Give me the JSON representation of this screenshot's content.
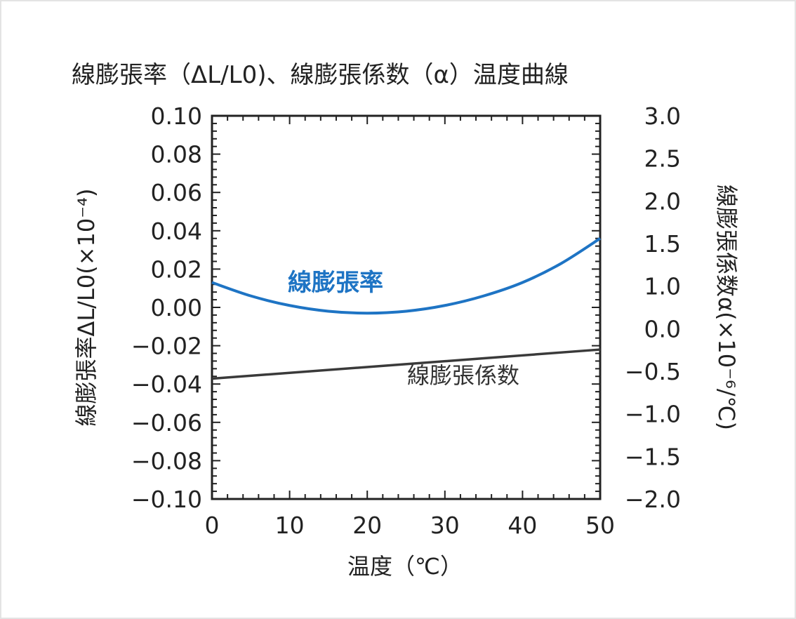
{
  "chart_data": {
    "type": "line",
    "title": "線膨張率（ΔL/L0)、線膨張係数（α）温度曲線",
    "xlabel": "温度（℃）",
    "ylabel_left": "線膨張率ΔL/L0(×10⁻⁴)",
    "ylabel_right": "線膨張係数α(×10⁻⁶/℃)",
    "x_ticks": [
      "0",
      "10",
      "20",
      "30",
      "40",
      "50"
    ],
    "left_ticks": [
      "0.10",
      "0.08",
      "0.06",
      "0.04",
      "0.02",
      "0.00",
      "−0.02",
      "−0.04",
      "−0.06",
      "−0.08",
      "−0.10"
    ],
    "right_ticks": [
      "3.0",
      "2.5",
      "2.0",
      "1.5",
      "1.0",
      "0.0",
      "−0.5",
      "−1.0",
      "−1.5",
      "−2.0"
    ],
    "xlim": [
      0,
      50
    ],
    "ylim_left": [
      -0.1,
      0.1
    ],
    "ylim_right": [
      -2.0,
      3.0
    ],
    "grid": false,
    "series": [
      {
        "name": "線膨張率",
        "axis": "left",
        "color": "#1e74c4",
        "x": [
          0,
          5,
          10,
          15,
          20,
          25,
          30,
          35,
          40,
          45,
          50
        ],
        "y": [
          0.013,
          0.006,
          0.001,
          -0.002,
          -0.003,
          -0.002,
          0.001,
          0.006,
          0.013,
          0.023,
          0.036
        ]
      },
      {
        "name": "線膨張係数",
        "axis": "right",
        "color": "#3a3a3a",
        "x": [
          0,
          50
        ],
        "y": [
          -0.43,
          -0.05
        ]
      }
    ]
  }
}
